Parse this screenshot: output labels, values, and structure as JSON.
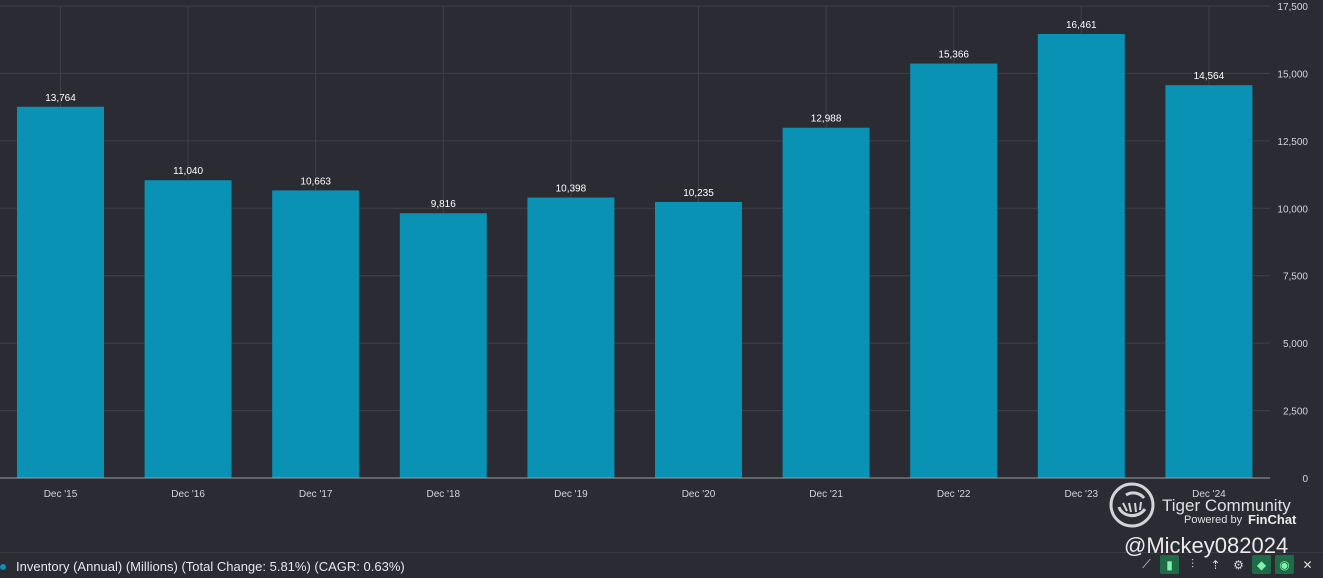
{
  "chart_data": {
    "type": "bar",
    "categories": [
      "Dec '15",
      "Dec '16",
      "Dec '17",
      "Dec '18",
      "Dec '19",
      "Dec '20",
      "Dec '21",
      "Dec '22",
      "Dec '23",
      "Dec '24"
    ],
    "values": [
      13764,
      11040,
      10663,
      9816,
      10398,
      10235,
      12988,
      15366,
      16461,
      14564
    ],
    "value_labels": [
      "13,764",
      "11,040",
      "10,663",
      "9,816",
      "10,398",
      "10,235",
      "12,988",
      "15,366",
      "16,461",
      "14,564"
    ],
    "yticks": [
      0,
      2500,
      5000,
      7500,
      10000,
      12500,
      15000,
      17500
    ],
    "ytick_labels": [
      "0",
      "2,500",
      "5,000",
      "7,500",
      "10,000",
      "12,500",
      "15,000",
      "17,500"
    ],
    "ylim": [
      0,
      17500
    ],
    "grid": true,
    "title": "",
    "xlabel": "",
    "ylabel": "",
    "series_name": "Inventory (Annual) (Millions)",
    "bar_color": "#0a92b5"
  },
  "legend": {
    "text": "Inventory (Annual) (Millions) (Total Change: 5.81%) (CAGR: 0.63%)"
  },
  "toolbar": {
    "icons": [
      "line-chart-icon",
      "bar-chart-icon",
      "stacked-bar-icon",
      "sort-icon",
      "gear-icon",
      "tag-icon",
      "eye-icon",
      "close-icon"
    ],
    "glyphs": [
      "⟋",
      "▮",
      "⫶",
      "⇡",
      "⚙",
      "◆",
      "◉",
      "✕"
    ],
    "active_color": "#1f6b45"
  },
  "watermark": {
    "community": "Tiger Community",
    "powered": "Powered by",
    "brand": "FinChat",
    "handle": "@Mickey082024"
  },
  "colors": {
    "background": "#2a2b33",
    "grid": "#3f414a",
    "axis_text": "#d4d5da",
    "label_text": "#ffffff"
  }
}
